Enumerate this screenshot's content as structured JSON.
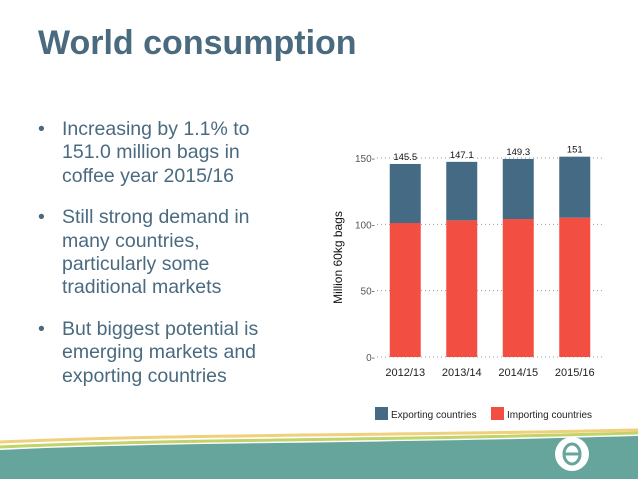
{
  "slide": {
    "title": "World consumption",
    "bullets": [
      "Increasing by 1.1% to 151.0 million bags in coffee year 2015/16",
      "Still strong demand in many countries, particularly some traditional markets",
      "But biggest potential is emerging markets and exporting countries"
    ],
    "bullet_glyph": "•"
  },
  "colors": {
    "text": "#4a6a80",
    "exporting": "#456b84",
    "importing": "#f24e42",
    "footer_green": "#c2d36a",
    "footer_yellow": "#efd07c",
    "footer_teal": "#66a59c",
    "logo": "#ffffff",
    "logo_mark": "#66a59c"
  },
  "chart_data": {
    "type": "bar",
    "stacked": true,
    "categories": [
      "2012/13",
      "2013/14",
      "2014/15",
      "2015/16"
    ],
    "series": [
      {
        "name": "Exporting countries",
        "values": [
          44.5,
          44.1,
          45.3,
          46.0
        ]
      },
      {
        "name": "Importing countries",
        "values": [
          101.0,
          103.0,
          104.0,
          105.0
        ]
      }
    ],
    "totals": [
      145.5,
      147.1,
      149.3,
      151
    ],
    "total_labels": [
      "145.5",
      "147.1",
      "149.3",
      "151"
    ],
    "ylabel": "Million 60kg bags",
    "xlabel": "",
    "ylim": [
      0,
      150
    ],
    "yticks": [
      0,
      50,
      100,
      150
    ],
    "ytick_labels": [
      "0-",
      "50-",
      "100-",
      "150-"
    ],
    "grid": "horizontal-dotted",
    "legend": "bottom",
    "legend_labels": [
      "Exporting countries",
      "Importing countries"
    ]
  }
}
